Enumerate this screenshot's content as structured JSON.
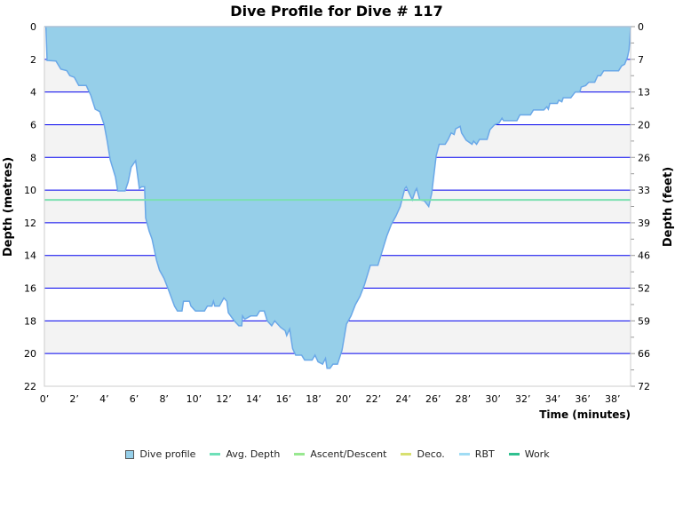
{
  "chart_data": {
    "type": "area",
    "title": "Dive Profile for Dive # 117",
    "xlabel": "Time (minutes)",
    "ylabel": "Depth (metres)",
    "y2label": "Depth (feet)",
    "xlim": [
      0,
      39.2
    ],
    "ylim": [
      0,
      22
    ],
    "y_inverted": true,
    "grid": true,
    "x_ticks": [
      0,
      2,
      4,
      6,
      8,
      10,
      12,
      14,
      16,
      18,
      20,
      22,
      24,
      26,
      28,
      30,
      32,
      34,
      36,
      38
    ],
    "x_tick_suffix": "’",
    "y_ticks": [
      0,
      2,
      4,
      6,
      8,
      10,
      12,
      14,
      16,
      18,
      20,
      22
    ],
    "y2_tick_labels": [
      "0",
      "7",
      "13",
      "20",
      "26",
      "33",
      "39",
      "46",
      "52",
      "59",
      "66",
      "72"
    ],
    "avg_depth": 10.6,
    "series": [
      {
        "name": "Dive profile",
        "color": "#96cfe9",
        "line_color": "#6aa8e8",
        "points": [
          [
            0,
            0
          ],
          [
            0.1,
            0
          ],
          [
            0.18,
            2.07
          ],
          [
            0.77,
            2.1
          ],
          [
            1.1,
            2.6
          ],
          [
            1.5,
            2.7
          ],
          [
            1.7,
            3.0
          ],
          [
            2.0,
            3.1
          ],
          [
            2.3,
            3.6
          ],
          [
            2.8,
            3.6
          ],
          [
            3.1,
            4.2
          ],
          [
            3.4,
            5.05
          ],
          [
            3.7,
            5.2
          ],
          [
            4.0,
            6.0
          ],
          [
            4.2,
            7.0
          ],
          [
            4.4,
            8.15
          ],
          [
            4.75,
            9.2
          ],
          [
            4.9,
            10.05
          ],
          [
            5.4,
            10.05
          ],
          [
            5.6,
            9.5
          ],
          [
            5.8,
            8.6
          ],
          [
            6.1,
            8.2
          ],
          [
            6.35,
            9.9
          ],
          [
            6.5,
            9.8
          ],
          [
            6.7,
            9.8
          ],
          [
            6.77,
            11.7
          ],
          [
            7.0,
            12.5
          ],
          [
            7.2,
            13.0
          ],
          [
            7.5,
            14.3
          ],
          [
            7.7,
            14.9
          ],
          [
            8.0,
            15.4
          ],
          [
            8.3,
            16.1
          ],
          [
            8.7,
            17.1
          ],
          [
            8.9,
            17.4
          ],
          [
            9.2,
            17.4
          ],
          [
            9.3,
            16.8
          ],
          [
            9.7,
            16.8
          ],
          [
            9.8,
            17.1
          ],
          [
            10.1,
            17.4
          ],
          [
            10.7,
            17.4
          ],
          [
            10.9,
            17.1
          ],
          [
            11.2,
            17.1
          ],
          [
            11.3,
            16.8
          ],
          [
            11.4,
            17.1
          ],
          [
            11.7,
            17.1
          ],
          [
            12.0,
            16.6
          ],
          [
            12.2,
            16.8
          ],
          [
            12.3,
            17.5
          ],
          [
            12.7,
            18.0
          ],
          [
            13.0,
            18.3
          ],
          [
            13.2,
            18.3
          ],
          [
            13.25,
            17.7
          ],
          [
            13.4,
            17.9
          ],
          [
            13.8,
            17.7
          ],
          [
            14.2,
            17.7
          ],
          [
            14.4,
            17.4
          ],
          [
            14.7,
            17.4
          ],
          [
            14.9,
            18.0
          ],
          [
            15.2,
            18.3
          ],
          [
            15.4,
            18.0
          ],
          [
            15.8,
            18.4
          ],
          [
            16.1,
            18.6
          ],
          [
            16.2,
            18.9
          ],
          [
            16.4,
            18.5
          ],
          [
            16.6,
            19.7
          ],
          [
            16.8,
            20.1
          ],
          [
            17.2,
            20.1
          ],
          [
            17.4,
            20.4
          ],
          [
            17.9,
            20.4
          ],
          [
            18.1,
            20.1
          ],
          [
            18.3,
            20.5
          ],
          [
            18.6,
            20.65
          ],
          [
            18.8,
            20.3
          ],
          [
            18.9,
            20.9
          ],
          [
            19.1,
            20.9
          ],
          [
            19.3,
            20.65
          ],
          [
            19.6,
            20.65
          ],
          [
            19.9,
            19.8
          ],
          [
            20.2,
            18.2
          ],
          [
            20.5,
            17.7
          ],
          [
            20.8,
            17.0
          ],
          [
            21.1,
            16.5
          ],
          [
            21.4,
            15.8
          ],
          [
            21.8,
            14.6
          ],
          [
            22.3,
            14.6
          ],
          [
            22.7,
            13.4
          ],
          [
            22.9,
            12.8
          ],
          [
            23.2,
            12.1
          ],
          [
            23.5,
            11.6
          ],
          [
            23.8,
            11.0
          ],
          [
            24.1,
            9.9
          ],
          [
            24.2,
            9.8
          ],
          [
            24.4,
            10.2
          ],
          [
            24.6,
            10.6
          ],
          [
            24.8,
            10.05
          ],
          [
            24.9,
            9.9
          ],
          [
            25.1,
            10.6
          ],
          [
            25.4,
            10.65
          ],
          [
            25.7,
            11.0
          ],
          [
            25.9,
            10.2
          ],
          [
            26.2,
            7.9
          ],
          [
            26.4,
            7.2
          ],
          [
            26.8,
            7.2
          ],
          [
            27.0,
            6.9
          ],
          [
            27.2,
            6.5
          ],
          [
            27.4,
            6.6
          ],
          [
            27.5,
            6.25
          ],
          [
            27.8,
            6.1
          ],
          [
            27.9,
            6.5
          ],
          [
            28.2,
            6.95
          ],
          [
            28.6,
            7.2
          ],
          [
            28.7,
            7.0
          ],
          [
            28.9,
            7.2
          ],
          [
            29.1,
            6.9
          ],
          [
            29.6,
            6.9
          ],
          [
            29.8,
            6.3
          ],
          [
            30.1,
            6.0
          ],
          [
            30.4,
            5.9
          ],
          [
            30.6,
            5.6
          ],
          [
            30.7,
            5.75
          ],
          [
            31.6,
            5.75
          ],
          [
            31.8,
            5.4
          ],
          [
            32.5,
            5.4
          ],
          [
            32.7,
            5.1
          ],
          [
            33.4,
            5.1
          ],
          [
            33.6,
            4.9
          ],
          [
            33.7,
            5.05
          ],
          [
            33.8,
            4.7
          ],
          [
            34.3,
            4.7
          ],
          [
            34.4,
            4.5
          ],
          [
            34.6,
            4.6
          ],
          [
            34.7,
            4.35
          ],
          [
            35.2,
            4.35
          ],
          [
            35.5,
            4.0
          ],
          [
            35.8,
            4.0
          ],
          [
            35.9,
            3.7
          ],
          [
            36.2,
            3.6
          ],
          [
            36.4,
            3.4
          ],
          [
            36.8,
            3.4
          ],
          [
            37.0,
            3.0
          ],
          [
            37.2,
            3.0
          ],
          [
            37.4,
            2.7
          ],
          [
            38.4,
            2.7
          ],
          [
            38.6,
            2.4
          ],
          [
            38.8,
            2.3
          ],
          [
            39.0,
            1.85
          ],
          [
            39.1,
            1.4
          ],
          [
            39.2,
            0
          ]
        ]
      }
    ],
    "legend_position": "bottom",
    "legend": [
      {
        "label": "Dive profile",
        "color": "#96cfe9",
        "kind": "box"
      },
      {
        "label": "Avg. Depth",
        "color": "#6ee0b8",
        "kind": "line"
      },
      {
        "label": "Ascent/Descent",
        "color": "#98e890",
        "kind": "line"
      },
      {
        "label": "Deco.",
        "color": "#d8e070",
        "kind": "line"
      },
      {
        "label": "RBT",
        "color": "#a0dcf4",
        "kind": "line"
      },
      {
        "label": "Work",
        "color": "#30c090",
        "kind": "line"
      }
    ],
    "colors": {
      "grid": "#0000ee",
      "band": "#f3f3f3",
      "avg_line": "#7be0b0"
    }
  }
}
